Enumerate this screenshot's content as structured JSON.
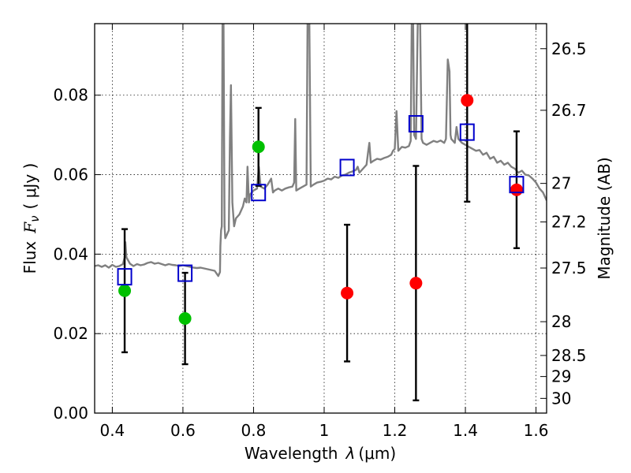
{
  "chart_data": {
    "type": "scatter",
    "xlabel": "Wavelength",
    "xlabel_symbol": "λ",
    "xlabel_unit": "(μm)",
    "ylabel": "Flux",
    "ylabel_symbol": "F",
    "ylabel_subscript": "ν",
    "ylabel_unit": "( μJy )",
    "y2label": "Magnitude (AB)",
    "xlim": [
      0.35,
      1.63
    ],
    "ylim": [
      0.0,
      0.098
    ],
    "grid": true,
    "x_ticks": [
      0.4,
      0.6,
      0.8,
      1.0,
      1.2,
      1.4,
      1.6
    ],
    "x_tick_labels": [
      "0.4",
      "0.6",
      "0.8",
      "1",
      "1.2",
      "1.4",
      "1.6"
    ],
    "y_ticks": [
      0.0,
      0.02,
      0.04,
      0.06,
      0.08
    ],
    "y_tick_labels": [
      "0.00",
      "0.02",
      "0.04",
      "0.06",
      "0.08"
    ],
    "y2_ticks": [
      {
        "label": "26.5",
        "flux": 0.0917
      },
      {
        "label": "26.7",
        "flux": 0.0762
      },
      {
        "label": "27",
        "flux": 0.0578
      },
      {
        "label": "27.2",
        "flux": 0.0481
      },
      {
        "label": "27.5",
        "flux": 0.0365
      },
      {
        "label": "28",
        "flux": 0.023
      },
      {
        "label": "28.5",
        "flux": 0.0145
      },
      {
        "label": "29",
        "flux": 0.0092
      },
      {
        "label": "30",
        "flux": 0.0037
      }
    ],
    "series": [
      {
        "marker": "circle",
        "color": "#00c000",
        "points": [
          {
            "x": 0.435,
            "y": 0.0308,
            "err": 0.0155
          },
          {
            "x": 0.606,
            "y": 0.0238,
            "err": 0.0115
          },
          {
            "x": 0.814,
            "y": 0.067,
            "err": 0.0098
          }
        ]
      },
      {
        "marker": "circle",
        "color": "#ff0000",
        "points": [
          {
            "x": 1.065,
            "y": 0.0302,
            "err": 0.0172
          },
          {
            "x": 1.26,
            "y": 0.0327,
            "err": 0.0295
          },
          {
            "x": 1.405,
            "y": 0.0787,
            "err": 0.0255
          },
          {
            "x": 1.545,
            "y": 0.0562,
            "err": 0.0147
          }
        ]
      },
      {
        "marker": "open-square",
        "color": "#0000cc",
        "points": [
          {
            "x": 0.435,
            "y": 0.0343
          },
          {
            "x": 0.606,
            "y": 0.0352
          },
          {
            "x": 0.814,
            "y": 0.0555
          },
          {
            "x": 1.065,
            "y": 0.0618
          },
          {
            "x": 1.26,
            "y": 0.0728
          },
          {
            "x": 1.405,
            "y": 0.0707
          },
          {
            "x": 1.545,
            "y": 0.0575
          }
        ]
      }
    ],
    "model_spectrum": {
      "color": "#808080",
      "points": [
        [
          0.35,
          0.037
        ],
        [
          0.36,
          0.0372
        ],
        [
          0.37,
          0.0368
        ],
        [
          0.38,
          0.0372
        ],
        [
          0.39,
          0.0366
        ],
        [
          0.4,
          0.0373
        ],
        [
          0.41,
          0.0368
        ],
        [
          0.42,
          0.037
        ],
        [
          0.43,
          0.0375
        ],
        [
          0.435,
          0.0392
        ],
        [
          0.437,
          0.043
        ],
        [
          0.44,
          0.0392
        ],
        [
          0.45,
          0.0376
        ],
        [
          0.46,
          0.037
        ],
        [
          0.47,
          0.0375
        ],
        [
          0.48,
          0.0372
        ],
        [
          0.49,
          0.0374
        ],
        [
          0.5,
          0.0378
        ],
        [
          0.51,
          0.038
        ],
        [
          0.52,
          0.0376
        ],
        [
          0.53,
          0.0378
        ],
        [
          0.54,
          0.0375
        ],
        [
          0.55,
          0.0372
        ],
        [
          0.56,
          0.0375
        ],
        [
          0.57,
          0.0373
        ],
        [
          0.58,
          0.0372
        ],
        [
          0.59,
          0.037
        ],
        [
          0.6,
          0.0372
        ],
        [
          0.61,
          0.037
        ],
        [
          0.62,
          0.0368
        ],
        [
          0.63,
          0.0366
        ],
        [
          0.64,
          0.0365
        ],
        [
          0.65,
          0.0366
        ],
        [
          0.66,
          0.0364
        ],
        [
          0.67,
          0.0362
        ],
        [
          0.68,
          0.036
        ],
        [
          0.69,
          0.0358
        ],
        [
          0.7,
          0.0345
        ],
        [
          0.705,
          0.0355
        ],
        [
          0.706,
          0.042
        ],
        [
          0.708,
          0.046
        ],
        [
          0.71,
          0.047
        ],
        [
          0.712,
          0.098
        ],
        [
          0.715,
          0.098
        ],
        [
          0.718,
          0.047
        ],
        [
          0.72,
          0.044
        ],
        [
          0.725,
          0.045
        ],
        [
          0.73,
          0.046
        ],
        [
          0.733,
          0.069
        ],
        [
          0.736,
          0.0825
        ],
        [
          0.74,
          0.053
        ],
        [
          0.745,
          0.047
        ],
        [
          0.75,
          0.049
        ],
        [
          0.76,
          0.05
        ],
        [
          0.77,
          0.052
        ],
        [
          0.775,
          0.054
        ],
        [
          0.78,
          0.053
        ],
        [
          0.783,
          0.062
        ],
        [
          0.787,
          0.053
        ],
        [
          0.79,
          0.055
        ],
        [
          0.8,
          0.056
        ],
        [
          0.81,
          0.0565
        ],
        [
          0.815,
          0.062
        ],
        [
          0.82,
          0.057
        ],
        [
          0.83,
          0.0565
        ],
        [
          0.84,
          0.0575
        ],
        [
          0.85,
          0.059
        ],
        [
          0.855,
          0.0555
        ],
        [
          0.86,
          0.056
        ],
        [
          0.87,
          0.0565
        ],
        [
          0.88,
          0.056
        ],
        [
          0.89,
          0.0565
        ],
        [
          0.9,
          0.0568
        ],
        [
          0.91,
          0.057
        ],
        [
          0.915,
          0.058
        ],
        [
          0.918,
          0.074
        ],
        [
          0.921,
          0.056
        ],
        [
          0.93,
          0.0565
        ],
        [
          0.94,
          0.057
        ],
        [
          0.95,
          0.0575
        ],
        [
          0.953,
          0.098
        ],
        [
          0.958,
          0.098
        ],
        [
          0.962,
          0.057
        ],
        [
          0.97,
          0.0575
        ],
        [
          0.98,
          0.058
        ],
        [
          0.99,
          0.0582
        ],
        [
          1.0,
          0.0585
        ],
        [
          1.01,
          0.059
        ],
        [
          1.02,
          0.0588
        ],
        [
          1.03,
          0.0595
        ],
        [
          1.04,
          0.0592
        ],
        [
          1.05,
          0.0598
        ],
        [
          1.06,
          0.06
        ],
        [
          1.07,
          0.0605
        ],
        [
          1.08,
          0.0608
        ],
        [
          1.09,
          0.0612
        ],
        [
          1.095,
          0.062
        ],
        [
          1.1,
          0.0605
        ],
        [
          1.11,
          0.0615
        ],
        [
          1.12,
          0.0625
        ],
        [
          1.125,
          0.066
        ],
        [
          1.128,
          0.068
        ],
        [
          1.132,
          0.063
        ],
        [
          1.14,
          0.0635
        ],
        [
          1.15,
          0.064
        ],
        [
          1.16,
          0.0638
        ],
        [
          1.17,
          0.0642
        ],
        [
          1.18,
          0.0645
        ],
        [
          1.19,
          0.065
        ],
        [
          1.195,
          0.066
        ],
        [
          1.2,
          0.0665
        ],
        [
          1.205,
          0.076
        ],
        [
          1.21,
          0.066
        ],
        [
          1.22,
          0.067
        ],
        [
          1.23,
          0.0668
        ],
        [
          1.24,
          0.0672
        ],
        [
          1.245,
          0.0685
        ],
        [
          1.248,
          0.098
        ],
        [
          1.252,
          0.098
        ],
        [
          1.255,
          0.07
        ],
        [
          1.26,
          0.069
        ],
        [
          1.265,
          0.098
        ],
        [
          1.272,
          0.098
        ],
        [
          1.276,
          0.069
        ],
        [
          1.28,
          0.068
        ],
        [
          1.29,
          0.0675
        ],
        [
          1.3,
          0.068
        ],
        [
          1.31,
          0.0685
        ],
        [
          1.32,
          0.0682
        ],
        [
          1.33,
          0.0686
        ],
        [
          1.34,
          0.068
        ],
        [
          1.345,
          0.069
        ],
        [
          1.35,
          0.089
        ],
        [
          1.355,
          0.086
        ],
        [
          1.358,
          0.07
        ],
        [
          1.36,
          0.069
        ],
        [
          1.37,
          0.068
        ],
        [
          1.375,
          0.072
        ],
        [
          1.38,
          0.069
        ],
        [
          1.39,
          0.068
        ],
        [
          1.4,
          0.0675
        ],
        [
          1.41,
          0.067
        ],
        [
          1.42,
          0.0665
        ],
        [
          1.43,
          0.066
        ],
        [
          1.44,
          0.0662
        ],
        [
          1.45,
          0.065
        ],
        [
          1.46,
          0.0655
        ],
        [
          1.47,
          0.064
        ],
        [
          1.48,
          0.0645
        ],
        [
          1.49,
          0.063
        ],
        [
          1.5,
          0.0635
        ],
        [
          1.51,
          0.0625
        ],
        [
          1.52,
          0.063
        ],
        [
          1.53,
          0.062
        ],
        [
          1.54,
          0.0615
        ],
        [
          1.55,
          0.0605
        ],
        [
          1.56,
          0.061
        ],
        [
          1.57,
          0.06
        ],
        [
          1.58,
          0.0598
        ],
        [
          1.59,
          0.059
        ],
        [
          1.6,
          0.058
        ],
        [
          1.61,
          0.0565
        ],
        [
          1.62,
          0.0555
        ],
        [
          1.63,
          0.0535
        ]
      ]
    }
  }
}
